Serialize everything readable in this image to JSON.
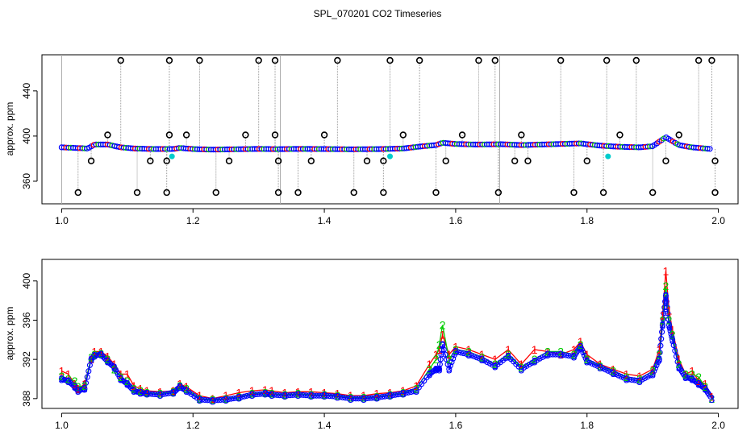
{
  "figure": {
    "title": "SPL_070201  CO2 Timeseries"
  },
  "chart_data": [
    {
      "type": "scatter",
      "panel": "top",
      "xlabel": "",
      "ylabel": "approx. ppm",
      "xlim": [
        0.97,
        2.03
      ],
      "ylim": [
        340,
        472
      ],
      "xticks": [
        1.0,
        1.2,
        1.4,
        1.6,
        1.8,
        2.0
      ],
      "xtick_labels": [
        "1.0",
        "1.2",
        "1.4",
        "1.6",
        "1.8",
        "2.0"
      ],
      "yticks": [
        360,
        400,
        440
      ],
      "ytick_labels": [
        "360",
        "400",
        "440"
      ],
      "grid": false,
      "legend": "none",
      "baseline": [
        [
          1.0,
          390
        ],
        [
          1.02,
          389.5
        ],
        [
          1.04,
          389
        ],
        [
          1.05,
          392.5
        ],
        [
          1.07,
          392.5
        ],
        [
          1.09,
          390
        ],
        [
          1.11,
          389
        ],
        [
          1.14,
          388.5
        ],
        [
          1.17,
          388.5
        ],
        [
          1.18,
          389.5
        ],
        [
          1.2,
          388.5
        ],
        [
          1.23,
          388
        ],
        [
          1.26,
          388.3
        ],
        [
          1.3,
          388.6
        ],
        [
          1.33,
          388.4
        ],
        [
          1.36,
          388.6
        ],
        [
          1.4,
          388.5
        ],
        [
          1.44,
          388.3
        ],
        [
          1.49,
          388.5
        ],
        [
          1.52,
          389
        ],
        [
          1.55,
          391
        ],
        [
          1.57,
          392
        ],
        [
          1.58,
          394
        ],
        [
          1.6,
          393
        ],
        [
          1.63,
          392.5
        ],
        [
          1.67,
          392.8
        ],
        [
          1.7,
          392
        ],
        [
          1.73,
          392.5
        ],
        [
          1.76,
          393
        ],
        [
          1.79,
          393.5
        ],
        [
          1.82,
          391.5
        ],
        [
          1.85,
          390.5
        ],
        [
          1.88,
          390
        ],
        [
          1.9,
          391
        ],
        [
          1.92,
          399
        ],
        [
          1.94,
          392
        ],
        [
          1.96,
          390
        ],
        [
          1.99,
          388.5
        ]
      ],
      "outliers_high": [
        1.09,
        1.164,
        1.21,
        1.3,
        1.325,
        1.42,
        1.5,
        1.545,
        1.635,
        1.66,
        1.76,
        1.83,
        1.875,
        1.97,
        1.99
      ],
      "outliers_low": [
        1.025,
        1.115,
        1.16,
        1.235,
        1.33,
        1.36,
        1.445,
        1.49,
        1.57,
        1.665,
        1.78,
        1.825,
        1.9,
        1.995
      ],
      "outliers_mid_up": [
        1.07,
        1.164,
        1.19,
        1.28,
        1.325,
        1.4,
        1.52,
        1.61,
        1.7,
        1.85,
        1.94
      ],
      "outliers_mid_down": [
        1.045,
        1.135,
        1.16,
        1.255,
        1.33,
        1.38,
        1.465,
        1.49,
        1.585,
        1.69,
        1.71,
        1.8,
        1.92,
        1.995
      ],
      "cyan_points": [
        [
          1.168,
          382
        ],
        [
          1.5,
          382
        ],
        [
          1.832,
          382
        ]
      ],
      "marker_colors": {
        "series_1": "#ff0000",
        "series_2": "#00cc00",
        "series_3": "#0000ff",
        "outlier": "#000000",
        "flag": "#00cccc",
        "lines": "#999999"
      }
    },
    {
      "type": "line",
      "panel": "bottom",
      "xlabel": "",
      "ylabel": "approx. ppm",
      "xlim": [
        0.97,
        2.03
      ],
      "ylim": [
        387,
        402.2
      ],
      "xticks": [
        1.0,
        1.2,
        1.4,
        1.6,
        1.8,
        2.0
      ],
      "xtick_labels": [
        "1.0",
        "1.2",
        "1.4",
        "1.6",
        "1.8",
        "2.0"
      ],
      "yticks": [
        388,
        392,
        396,
        400
      ],
      "ytick_labels": [
        "388",
        "392",
        "396",
        "400"
      ],
      "grid": false,
      "legend": "none",
      "series": [
        {
          "color": "#ff0000",
          "marker": "1",
          "x": [
            1.0,
            1.01,
            1.02,
            1.025,
            1.035,
            1.045,
            1.05,
            1.06,
            1.07,
            1.08,
            1.09,
            1.1,
            1.11,
            1.12,
            1.13,
            1.15,
            1.17,
            1.18,
            1.19,
            1.21,
            1.23,
            1.25,
            1.27,
            1.29,
            1.31,
            1.32,
            1.34,
            1.36,
            1.38,
            1.4,
            1.42,
            1.44,
            1.46,
            1.48,
            1.5,
            1.52,
            1.54,
            1.56,
            1.57,
            1.575,
            1.58,
            1.59,
            1.6,
            1.62,
            1.64,
            1.66,
            1.68,
            1.7,
            1.72,
            1.74,
            1.76,
            1.78,
            1.79,
            1.8,
            1.82,
            1.84,
            1.86,
            1.88,
            1.9,
            1.91,
            1.915,
            1.92,
            1.925,
            1.93,
            1.94,
            1.95,
            1.96,
            1.97,
            1.98,
            1.99
          ],
          "y": [
            390.8,
            390.5,
            389.5,
            389.0,
            389.5,
            392.0,
            392.8,
            392.8,
            392.3,
            391.5,
            390.5,
            390.5,
            389.3,
            389.0,
            388.8,
            388.7,
            388.8,
            389.5,
            389.2,
            388.3,
            388.0,
            388.3,
            388.6,
            388.8,
            388.9,
            388.8,
            388.6,
            388.7,
            388.7,
            388.6,
            388.5,
            388.3,
            388.3,
            388.5,
            388.6,
            388.8,
            389.3,
            391.5,
            392.5,
            393.0,
            394.5,
            392.5,
            393.3,
            393.0,
            392.5,
            392.0,
            393.0,
            391.5,
            393.0,
            392.8,
            392.5,
            393.0,
            393.8,
            392.5,
            391.5,
            391.0,
            390.5,
            390.3,
            391.0,
            393.0,
            396.5,
            401.0,
            397.0,
            395.0,
            392.0,
            390.5,
            390.8,
            389.8,
            389.5,
            388.2
          ]
        },
        {
          "color": "#00cc00",
          "marker": "2",
          "x": [
            1.0,
            1.01,
            1.02,
            1.025,
            1.035,
            1.045,
            1.05,
            1.06,
            1.07,
            1.08,
            1.09,
            1.1,
            1.11,
            1.12,
            1.13,
            1.15,
            1.17,
            1.18,
            1.19,
            1.21,
            1.23,
            1.25,
            1.27,
            1.29,
            1.31,
            1.32,
            1.34,
            1.36,
            1.38,
            1.4,
            1.42,
            1.44,
            1.46,
            1.48,
            1.5,
            1.52,
            1.54,
            1.56,
            1.57,
            1.575,
            1.58,
            1.59,
            1.6,
            1.62,
            1.64,
            1.66,
            1.68,
            1.7,
            1.72,
            1.74,
            1.76,
            1.78,
            1.79,
            1.8,
            1.82,
            1.84,
            1.86,
            1.88,
            1.9,
            1.91,
            1.915,
            1.92,
            1.925,
            1.93,
            1.94,
            1.95,
            1.96,
            1.97,
            1.98,
            1.99
          ],
          "y": [
            390.3,
            390.0,
            389.8,
            389.2,
            389.3,
            392.2,
            392.5,
            392.6,
            392.0,
            391.0,
            390.2,
            389.8,
            389.0,
            388.8,
            388.6,
            388.5,
            388.7,
            389.3,
            389.0,
            388.0,
            387.9,
            388.0,
            388.2,
            388.5,
            388.6,
            388.5,
            388.4,
            388.5,
            388.4,
            388.4,
            388.3,
            388.1,
            388.1,
            388.2,
            388.4,
            388.6,
            389.0,
            391.0,
            392.0,
            393.5,
            395.5,
            392.0,
            393.0,
            392.8,
            392.2,
            391.5,
            392.5,
            391.2,
            392.0,
            392.8,
            392.8,
            392.5,
            393.5,
            392.0,
            391.3,
            390.8,
            390.2,
            390.0,
            390.8,
            392.5,
            396.0,
            399.5,
            396.0,
            394.5,
            391.5,
            390.5,
            390.5,
            390.2,
            389.2,
            388.0
          ]
        },
        {
          "color": "#0000ff",
          "marker": "3",
          "x": [
            1.0,
            1.01,
            1.02,
            1.025,
            1.035,
            1.045,
            1.05,
            1.06,
            1.07,
            1.08,
            1.09,
            1.1,
            1.11,
            1.12,
            1.13,
            1.15,
            1.17,
            1.18,
            1.19,
            1.21,
            1.23,
            1.25,
            1.27,
            1.29,
            1.31,
            1.32,
            1.34,
            1.36,
            1.38,
            1.4,
            1.42,
            1.44,
            1.46,
            1.48,
            1.5,
            1.52,
            1.54,
            1.56,
            1.57,
            1.575,
            1.58,
            1.59,
            1.6,
            1.62,
            1.64,
            1.66,
            1.68,
            1.7,
            1.72,
            1.74,
            1.76,
            1.78,
            1.79,
            1.8,
            1.82,
            1.84,
            1.86,
            1.88,
            1.9,
            1.91,
            1.915,
            1.92,
            1.925,
            1.93,
            1.94,
            1.95,
            1.96,
            1.97,
            1.98,
            1.99
          ],
          "y": [
            390.0,
            389.8,
            389.2,
            388.8,
            389.0,
            392.0,
            392.4,
            392.5,
            391.8,
            391.2,
            390.0,
            389.5,
            388.8,
            388.6,
            388.5,
            388.4,
            388.6,
            389.2,
            388.8,
            387.9,
            387.8,
            387.9,
            388.1,
            388.4,
            388.5,
            388.4,
            388.3,
            388.4,
            388.3,
            388.3,
            388.2,
            388.0,
            388.0,
            388.1,
            388.3,
            388.5,
            388.8,
            390.5,
            391.0,
            391.0,
            393.5,
            391.0,
            392.8,
            392.5,
            392.0,
            391.3,
            392.3,
            391.0,
            391.8,
            392.5,
            392.5,
            392.3,
            393.3,
            391.8,
            391.2,
            390.6,
            390.0,
            389.8,
            390.5,
            392.0,
            395.5,
            398.5,
            395.5,
            394.0,
            391.2,
            390.2,
            390.0,
            389.5,
            389.0,
            388.0
          ]
        }
      ]
    }
  ]
}
